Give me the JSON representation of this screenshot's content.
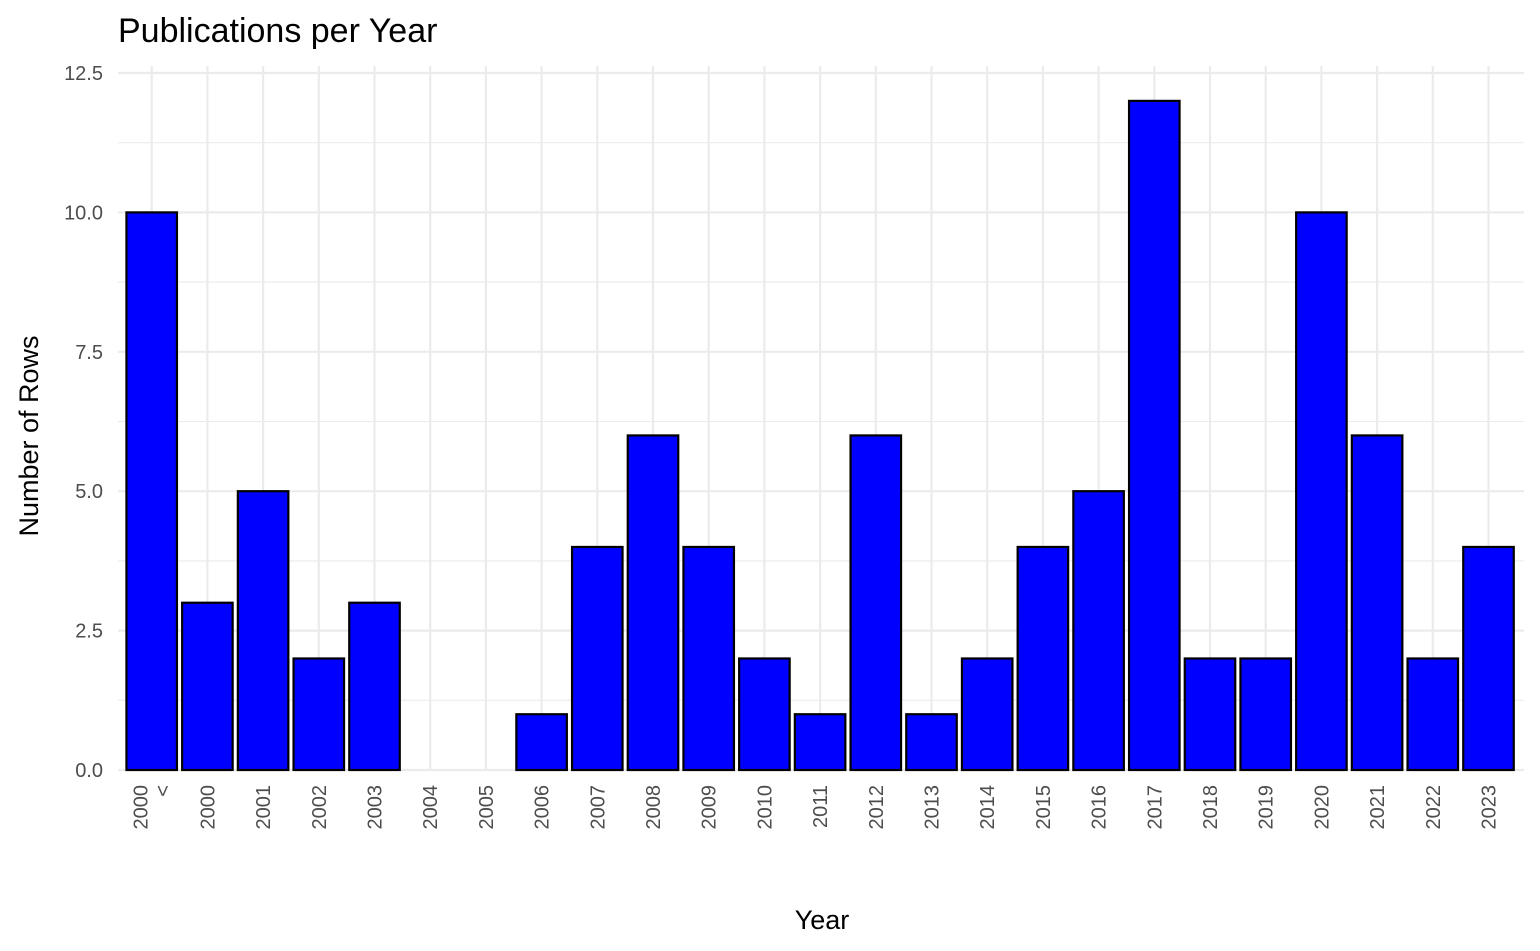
{
  "chart_data": {
    "type": "bar",
    "title": "Publications per Year",
    "xlabel": "Year",
    "ylabel": "Number of Rows",
    "categories": [
      "< 2000",
      "2000",
      "2001",
      "2002",
      "2003",
      "2004",
      "2005",
      "2006",
      "2007",
      "2008",
      "2009",
      "2010",
      "2011",
      "2012",
      "2013",
      "2014",
      "2015",
      "2016",
      "2017",
      "2018",
      "2019",
      "2020",
      "2021",
      "2022",
      "2023"
    ],
    "values": [
      10,
      3,
      5,
      2,
      3,
      0,
      0,
      1,
      4,
      6,
      4,
      2,
      1,
      6,
      1,
      2,
      4,
      5,
      12,
      2,
      2,
      10,
      6,
      2,
      4
    ],
    "ylim": [
      0,
      12.5
    ],
    "yticks": [
      0,
      2.5,
      5,
      7.5,
      10,
      12.5
    ],
    "ytick_labels": [
      "0.0",
      "2.5",
      "5.0",
      "7.5",
      "10.0",
      "12.5"
    ],
    "grid": true,
    "legend": "none",
    "bar_fill": "#0000ff",
    "bar_outline": "#000000",
    "grid_color": "#ebebeb"
  }
}
